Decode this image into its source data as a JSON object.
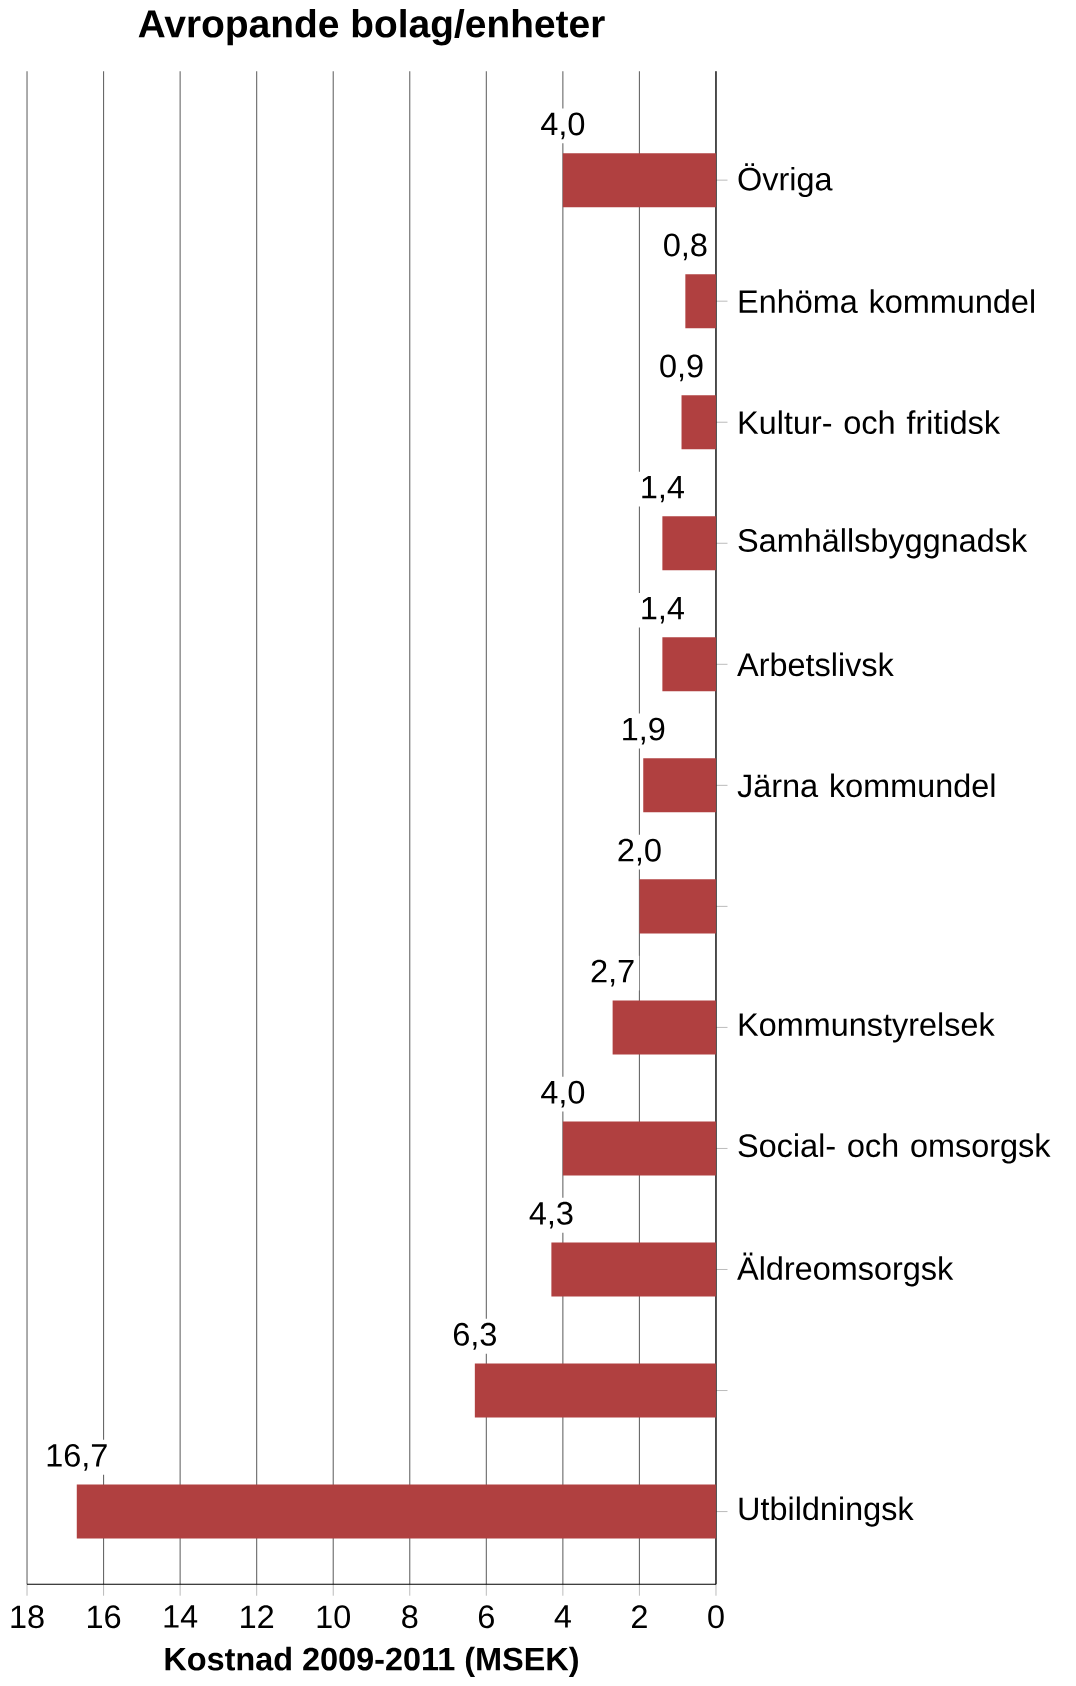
{
  "chart_data": {
    "type": "bar",
    "orientation": "horizontal",
    "title": "Avropande bolag/enheter",
    "xlabel": "Kostnad 2009-2011 (MSEK)",
    "categories": [
      "Övriga",
      "Enhöma kommundel",
      "Kultur- och fritidsk",
      "Samhällsbyggnadsk",
      "Arbetslivsk",
      "Järna kommundel",
      null,
      "Kommunstyrelsek",
      "Social- och omsorgsk",
      "Äldreomsorgsk",
      null,
      "Utbildningsk"
    ],
    "values": [
      4.0,
      0.8,
      0.9,
      1.4,
      1.4,
      1.9,
      2.0,
      2.7,
      4.0,
      4.3,
      6.3,
      16.7
    ],
    "value_labels": [
      "4,0",
      "0,8",
      "0,9",
      "1,4",
      "1,4",
      "1,9",
      "2,0",
      "2,7",
      "4,0",
      "4,3",
      "6,3",
      "16,7"
    ],
    "color": "#b04040",
    "xlim": [
      18,
      0
    ],
    "xticks": [
      18,
      16,
      14,
      12,
      10,
      8,
      6,
      4,
      2,
      0
    ],
    "grid": "x"
  }
}
